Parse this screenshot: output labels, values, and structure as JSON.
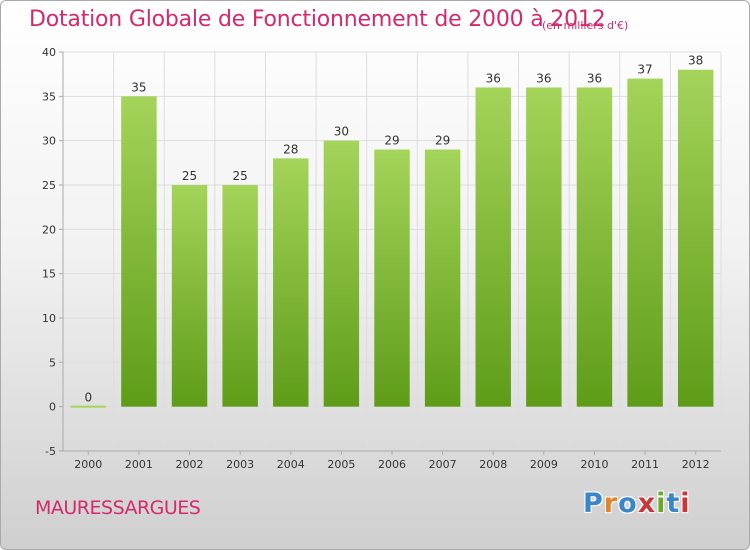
{
  "header": {
    "title": "Dotation Globale de Fonctionnement de 2000 à 2012",
    "unit": "(en milliers d'€)"
  },
  "footer": {
    "commune": "MAURESSARGUES",
    "logo": "Proxiti",
    "logo_colors": [
      "#3a86c8",
      "#e2842a",
      "#3a86c8",
      "#c8363a",
      "#6aaa2a",
      "#3a86c8",
      "#c8363a"
    ]
  },
  "colors": {
    "bar_top": "#a4d45a",
    "bar_bottom": "#5e9c18",
    "grid": "#dddddd",
    "axis": "#aaaaaa",
    "text": "#333333",
    "title": "#d42a6c"
  },
  "chart_data": {
    "type": "bar",
    "categories": [
      "2000",
      "2001",
      "2002",
      "2003",
      "2004",
      "2005",
      "2006",
      "2007",
      "2008",
      "2009",
      "2010",
      "2011",
      "2012"
    ],
    "values": [
      0,
      35,
      25,
      25,
      28,
      30,
      29,
      29,
      36,
      36,
      36,
      37,
      38
    ],
    "title": "Dotation Globale de Fonctionnement de 2000 à 2012",
    "xlabel": "",
    "ylabel": "",
    "ylim": [
      -5,
      40
    ],
    "yticks": [
      -5,
      0,
      5,
      10,
      15,
      20,
      25,
      30,
      35,
      40
    ],
    "grid": true,
    "data_labels": true
  }
}
